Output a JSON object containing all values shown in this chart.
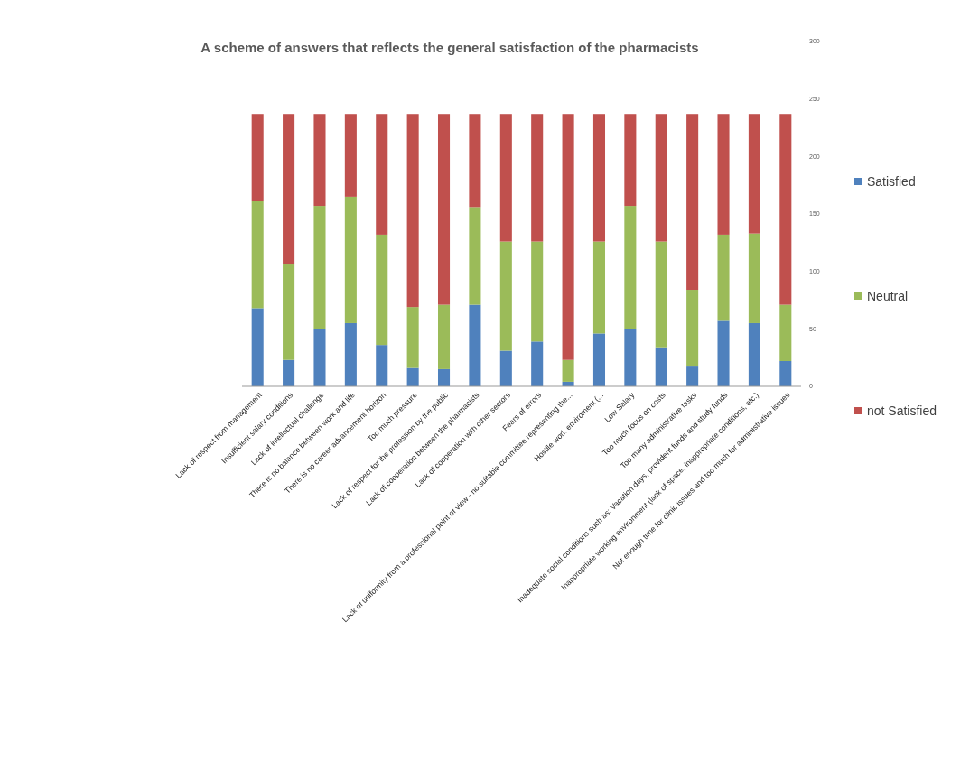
{
  "chart_data": {
    "type": "bar",
    "stacked": true,
    "title": "A scheme of answers that reflects the general satisfaction of the pharmacists",
    "categories": [
      "Lack of respect from management",
      "Insufficient salary conditions",
      "Lack of intellectual challenge",
      "There is no balance between work and life",
      "There is no career advancement horizon",
      "Too much pressure",
      "Lack of respect for the profession by the public",
      "Lack of cooperation between the pharmacists",
      "Lack of cooperation with other sectors",
      "Fears of errors",
      "Lack of uniformity from a professional point of view - no suitable committee representing the...",
      "Hostile work enviroment (...",
      "Low Salary",
      "Too much focus on costs",
      "Too many administrative tasks",
      "Inadequate social conditions such as: Vacation days, provident funds and study funds",
      "Inappropriate working environment (lack of space, inappropriate conditions, etc.)",
      "Not enough time for clinic issues and too much for administrative issues"
    ],
    "series": [
      {
        "name": "Satisfied",
        "color": "#4f81bd",
        "values": [
          68,
          23,
          50,
          55,
          36,
          16,
          15,
          71,
          31,
          39,
          4,
          46,
          50,
          34,
          18,
          57,
          55,
          22
        ]
      },
      {
        "name": "Neutral",
        "color": "#9bbb59",
        "values": [
          93,
          83,
          107,
          110,
          96,
          53,
          56,
          85,
          95,
          87,
          19,
          80,
          107,
          92,
          66,
          75,
          78,
          49
        ]
      },
      {
        "name": "not Satisfied",
        "color": "#c0504d",
        "values": [
          76,
          131,
          80,
          72,
          105,
          168,
          166,
          81,
          111,
          111,
          214,
          111,
          80,
          111,
          153,
          105,
          104,
          166
        ]
      }
    ],
    "ylim": [
      0,
      300
    ],
    "yticks": [
      0,
      50,
      100,
      150,
      200,
      250,
      300
    ],
    "grid": false,
    "legend": "right"
  }
}
